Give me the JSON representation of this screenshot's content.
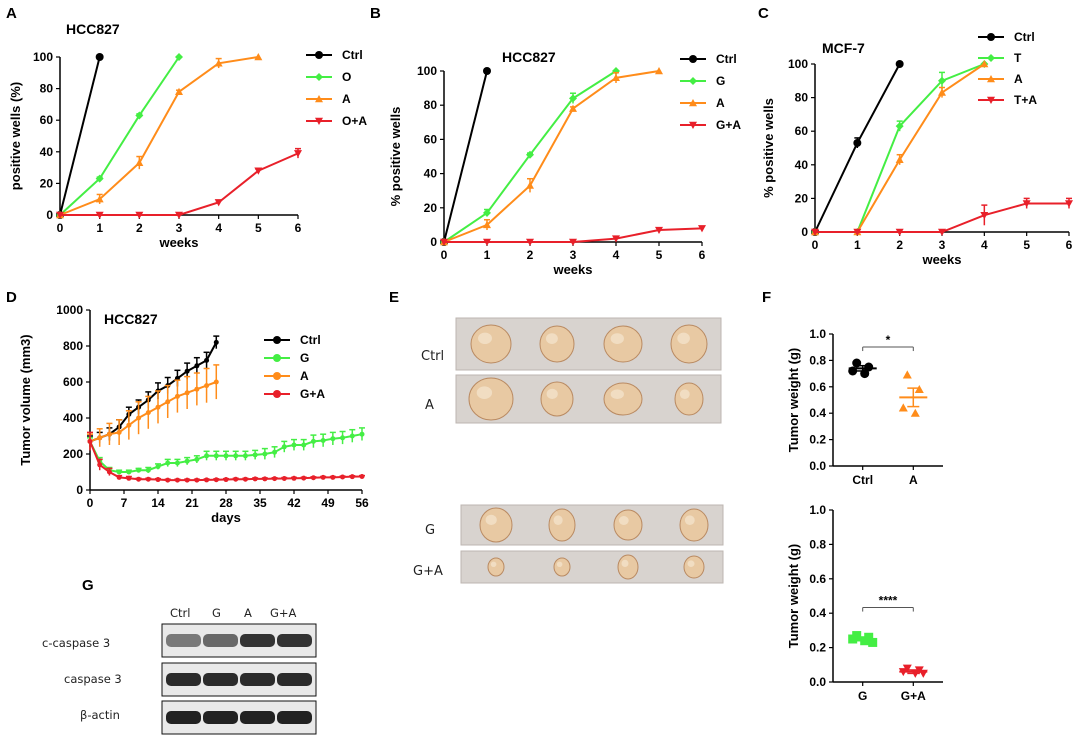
{
  "panels": {
    "A": {
      "label": "A",
      "title": "HCC827"
    },
    "B": {
      "label": "B",
      "title": "HCC827"
    },
    "C": {
      "label": "C",
      "title": "MCF-7"
    },
    "D": {
      "label": "D",
      "title": "HCC827"
    },
    "E": {
      "label": "E",
      "rows": [
        "Ctrl",
        "A",
        "G",
        "G+A"
      ]
    },
    "F": {
      "label": "F"
    },
    "G": {
      "label": "G",
      "lanes": [
        "Ctrl",
        "G",
        "A",
        "G+A"
      ],
      "bands": [
        "c-caspase 3",
        "caspase 3",
        "β-actin"
      ]
    }
  },
  "colors": {
    "Ctrl": "#000000",
    "green": "#44ee44",
    "orange": "#ff8c1a",
    "red": "#e8202a"
  },
  "chart_data": [
    {
      "id": "A",
      "type": "line",
      "title": "HCC827",
      "xlabel": "weeks",
      "ylabel": "positive wells (%)",
      "xlim": [
        0,
        6
      ],
      "ylim": [
        0,
        100
      ],
      "xticks": [
        "0",
        "1",
        "2",
        "3",
        "4",
        "5",
        "6"
      ],
      "yticks": [
        "0",
        "20",
        "40",
        "60",
        "80",
        "100"
      ],
      "series": [
        {
          "name": "Ctrl",
          "marker": "circle",
          "color": "#000000",
          "x": [
            0,
            1
          ],
          "y": [
            0,
            100
          ],
          "err": [
            0,
            0
          ]
        },
        {
          "name": "O",
          "marker": "diamond",
          "color": "#44ee44",
          "x": [
            0,
            1,
            2,
            3
          ],
          "y": [
            0,
            23,
            63,
            100
          ],
          "err": [
            0,
            1,
            1,
            0
          ]
        },
        {
          "name": "A",
          "marker": "triangle",
          "color": "#ff8c1a",
          "x": [
            0,
            1,
            2,
            3,
            4,
            5
          ],
          "y": [
            0,
            10,
            33,
            78,
            96,
            100
          ],
          "err": [
            0,
            3,
            4,
            1,
            3,
            0
          ]
        },
        {
          "name": "O+A",
          "marker": "triangle-down",
          "color": "#e8202a",
          "x": [
            0,
            1,
            2,
            3,
            4,
            5,
            6
          ],
          "y": [
            0,
            0,
            0,
            0,
            8,
            28,
            39
          ],
          "err": [
            0,
            0,
            0,
            0,
            1,
            1,
            3
          ]
        }
      ]
    },
    {
      "id": "B",
      "type": "line",
      "title": "HCC827",
      "xlabel": "weeks",
      "ylabel": "% positive wells",
      "xlim": [
        0,
        6
      ],
      "ylim": [
        0,
        100
      ],
      "xticks": [
        "0",
        "1",
        "2",
        "3",
        "4",
        "5",
        "6"
      ],
      "yticks": [
        "0",
        "20",
        "40",
        "60",
        "80",
        "100"
      ],
      "series": [
        {
          "name": "Ctrl",
          "marker": "circle",
          "color": "#000000",
          "x": [
            0,
            1
          ],
          "y": [
            0,
            100
          ],
          "err": [
            0,
            0
          ]
        },
        {
          "name": "G",
          "marker": "diamond",
          "color": "#44ee44",
          "x": [
            0,
            1,
            2,
            3,
            4
          ],
          "y": [
            0,
            17,
            51,
            84,
            100
          ],
          "err": [
            0,
            2,
            1,
            3,
            0
          ]
        },
        {
          "name": "A",
          "marker": "triangle",
          "color": "#ff8c1a",
          "x": [
            0,
            1,
            2,
            3,
            4,
            5
          ],
          "y": [
            0,
            10,
            33,
            78,
            96,
            100
          ],
          "err": [
            0,
            3,
            4,
            1,
            3,
            0
          ]
        },
        {
          "name": "G+A",
          "marker": "triangle-down",
          "color": "#e8202a",
          "x": [
            0,
            1,
            2,
            3,
            4,
            5,
            6
          ],
          "y": [
            0,
            0,
            0,
            0,
            2,
            7,
            8
          ],
          "err": [
            0,
            0,
            0,
            0,
            0,
            0,
            0
          ]
        }
      ]
    },
    {
      "id": "C",
      "type": "line",
      "title": "MCF-7",
      "xlabel": "weeks",
      "ylabel": "% positive wells",
      "xlim": [
        0,
        6
      ],
      "ylim": [
        0,
        100
      ],
      "xticks": [
        "0",
        "1",
        "2",
        "3",
        "4",
        "5",
        "6"
      ],
      "yticks": [
        "0",
        "20",
        "40",
        "60",
        "80",
        "100"
      ],
      "series": [
        {
          "name": "Ctrl",
          "marker": "circle",
          "color": "#000000",
          "x": [
            0,
            1,
            2
          ],
          "y": [
            0,
            53,
            100
          ],
          "err": [
            0,
            3,
            0
          ]
        },
        {
          "name": "T",
          "marker": "diamond",
          "color": "#44ee44",
          "x": [
            0,
            1,
            2,
            3,
            4
          ],
          "y": [
            0,
            0,
            63,
            90,
            100
          ],
          "err": [
            0,
            0,
            3,
            5,
            0
          ]
        },
        {
          "name": "A",
          "marker": "triangle",
          "color": "#ff8c1a",
          "x": [
            0,
            1,
            2,
            3,
            4
          ],
          "y": [
            0,
            0,
            43,
            83,
            100
          ],
          "err": [
            0,
            0,
            3,
            3,
            0
          ]
        },
        {
          "name": "T+A",
          "marker": "triangle-down",
          "color": "#e8202a",
          "x": [
            0,
            1,
            2,
            3,
            4,
            5,
            6
          ],
          "y": [
            0,
            0,
            0,
            0,
            10,
            17,
            17
          ],
          "err": [
            0,
            0,
            0,
            0,
            6,
            3,
            3
          ]
        }
      ]
    },
    {
      "id": "D",
      "type": "line",
      "title": "HCC827",
      "xlabel": "days",
      "ylabel": "Tumor volume (mm3)",
      "xlim": [
        0,
        56
      ],
      "ylim": [
        0,
        1000
      ],
      "xticks": [
        "0",
        "7",
        "14",
        "21",
        "28",
        "35",
        "42",
        "49",
        "56"
      ],
      "yticks": [
        "0",
        "200",
        "400",
        "600",
        "800",
        "1000"
      ],
      "series": [
        {
          "name": "Ctrl",
          "marker": "dot",
          "color": "#000000",
          "x": [
            0,
            2,
            4,
            6,
            8,
            10,
            12,
            14,
            16,
            18,
            20,
            22,
            24,
            26
          ],
          "y": [
            270,
            290,
            310,
            350,
            420,
            460,
            500,
            550,
            580,
            620,
            660,
            690,
            720,
            820
          ],
          "err": [
            30,
            30,
            35,
            40,
            40,
            40,
            45,
            45,
            45,
            45,
            45,
            45,
            45,
            35
          ]
        },
        {
          "name": "G",
          "marker": "dot",
          "color": "#44ee44",
          "x": [
            0,
            2,
            4,
            6,
            8,
            10,
            12,
            14,
            16,
            18,
            20,
            22,
            24,
            26,
            28,
            30,
            32,
            34,
            36,
            38,
            40,
            42,
            44,
            46,
            48,
            50,
            52,
            54,
            56
          ],
          "y": [
            270,
            160,
            110,
            100,
            100,
            110,
            110,
            130,
            150,
            150,
            160,
            170,
            190,
            190,
            190,
            190,
            190,
            195,
            200,
            210,
            240,
            250,
            250,
            270,
            275,
            285,
            290,
            300,
            310
          ],
          "err": [
            20,
            20,
            15,
            10,
            10,
            10,
            15,
            15,
            20,
            20,
            20,
            20,
            25,
            25,
            25,
            25,
            25,
            25,
            30,
            30,
            30,
            30,
            30,
            35,
            35,
            35,
            35,
            35,
            35
          ]
        },
        {
          "name": "A",
          "marker": "dot",
          "color": "#ff8c1a",
          "x": [
            0,
            2,
            4,
            6,
            8,
            10,
            12,
            14,
            16,
            18,
            20,
            22,
            24,
            26
          ],
          "y": [
            270,
            290,
            310,
            320,
            360,
            400,
            430,
            460,
            490,
            520,
            540,
            560,
            580,
            600
          ],
          "err": [
            40,
            50,
            60,
            70,
            80,
            90,
            90,
            90,
            90,
            90,
            90,
            90,
            95,
            95
          ]
        },
        {
          "name": "G+A",
          "marker": "dot",
          "color": "#e8202a",
          "x": [
            0,
            2,
            4,
            6,
            8,
            10,
            12,
            14,
            16,
            18,
            20,
            22,
            24,
            26,
            28,
            30,
            32,
            34,
            36,
            38,
            40,
            42,
            44,
            46,
            48,
            50,
            52,
            54,
            56
          ],
          "y": [
            270,
            140,
            100,
            70,
            65,
            60,
            60,
            58,
            55,
            55,
            55,
            55,
            56,
            57,
            58,
            60,
            60,
            62,
            62,
            63,
            64,
            65,
            66,
            68,
            70,
            70,
            72,
            74,
            75
          ],
          "err": [
            50,
            30,
            20,
            10,
            10,
            5,
            5,
            5,
            5,
            5,
            5,
            5,
            5,
            5,
            5,
            5,
            5,
            5,
            5,
            5,
            5,
            5,
            5,
            5,
            5,
            5,
            5,
            5,
            5
          ]
        }
      ]
    },
    {
      "id": "F1",
      "type": "scatter",
      "ylabel": "Tumor weight (g)",
      "ylim": [
        0,
        1.0
      ],
      "yticks": [
        "0.0",
        "0.2",
        "0.4",
        "0.6",
        "0.8",
        "1.0"
      ],
      "categories": [
        "Ctrl",
        "A"
      ],
      "groups": [
        {
          "name": "Ctrl",
          "marker": "circle",
          "color": "#000000",
          "points": [
            0.78,
            0.75,
            0.72,
            0.7
          ],
          "mean": 0.74,
          "sem": 0.02
        },
        {
          "name": "A",
          "marker": "triangle",
          "color": "#ff8c1a",
          "points": [
            0.69,
            0.58,
            0.44,
            0.4
          ],
          "mean": 0.52,
          "sem": 0.07
        }
      ],
      "significance": "*"
    },
    {
      "id": "F2",
      "type": "scatter",
      "ylabel": "Tumor weight (g)",
      "ylim": [
        0,
        1.0
      ],
      "yticks": [
        "0.0",
        "0.2",
        "0.4",
        "0.6",
        "0.8",
        "1.0"
      ],
      "categories": [
        "G",
        "G+A"
      ],
      "groups": [
        {
          "name": "G",
          "marker": "square",
          "color": "#44ee44",
          "points": [
            0.27,
            0.26,
            0.25,
            0.24,
            0.23
          ],
          "mean": 0.25,
          "sem": 0.01
        },
        {
          "name": "G+A",
          "marker": "triangle-down",
          "color": "#e8202a",
          "points": [
            0.08,
            0.07,
            0.06,
            0.05,
            0.05
          ],
          "mean": 0.06,
          "sem": 0.01
        }
      ],
      "significance": "****"
    }
  ]
}
